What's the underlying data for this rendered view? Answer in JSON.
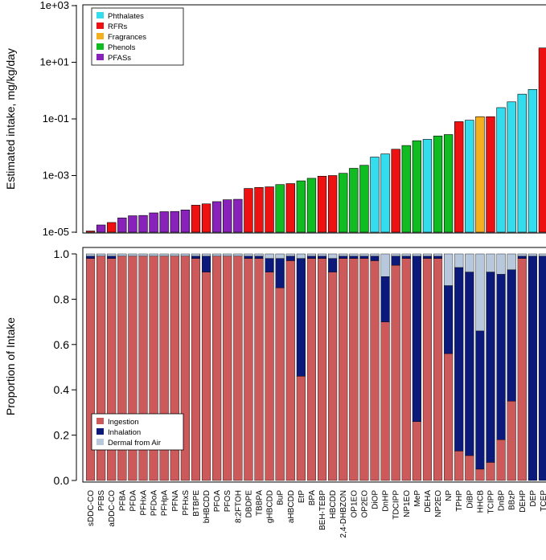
{
  "chart_data": [
    {
      "type": "bar",
      "scale": "log10",
      "ylabel": "Estimated intake, mg/kg/day",
      "ylim": [
        1e-05,
        1000
      ],
      "y_ticks": [
        "1e-05",
        "1e-03",
        "1e-01",
        "1e+01",
        "1e+03"
      ],
      "legend_position": "top-left",
      "legend": [
        {
          "name": "Phthalates",
          "color": "#33DDEE"
        },
        {
          "name": "RFRs",
          "color": "#EE1111"
        },
        {
          "name": "Fragrances",
          "color": "#F5B020"
        },
        {
          "name": "Phenols",
          "color": "#11BB22"
        },
        {
          "name": "PFASs",
          "color": "#8822BB"
        }
      ],
      "categories": [
        "sDDC-CO",
        "PFBS",
        "aDDC-CO",
        "PFBA",
        "PFDA",
        "PFHxA",
        "PFDoA",
        "PFHpA",
        "PFNA",
        "PFHxS",
        "BTBPE",
        "bHBCDD",
        "PFOA",
        "PFOS",
        "8:2FTOH",
        "DBDPE",
        "TBBPA",
        "gHBCDD",
        "BuP",
        "aHBCDD",
        "EtP",
        "BPA",
        "BEH-TEBP",
        "HBCDD",
        "2,4-DHBZON",
        "OP1EO",
        "OP2EO",
        "DiOP",
        "DnHP",
        "TDCIPP",
        "NP1EO",
        "MeP",
        "DEHA",
        "NP2EO",
        "NP",
        "TPHP",
        "DiBP",
        "HHCB",
        "TCIPP",
        "DnBP",
        "BBzP",
        "DEHP",
        "DEP",
        "TCEP"
      ],
      "groups": [
        "RFRs",
        "PFASs",
        "RFRs",
        "PFASs",
        "PFASs",
        "PFASs",
        "PFASs",
        "PFASs",
        "PFASs",
        "PFASs",
        "RFRs",
        "RFRs",
        "PFASs",
        "PFASs",
        "PFASs",
        "RFRs",
        "RFRs",
        "RFRs",
        "Phenols",
        "RFRs",
        "Phenols",
        "Phenols",
        "RFRs",
        "RFRs",
        "Phenols",
        "Phenols",
        "Phenols",
        "Phthalates",
        "Phthalates",
        "RFRs",
        "Phenols",
        "Phenols",
        "Phthalates",
        "Phenols",
        "Phenols",
        "RFRs",
        "Phthalates",
        "Fragrances",
        "RFRs",
        "Phthalates",
        "Phthalates",
        "Phthalates",
        "Phthalates",
        "RFRs"
      ],
      "values": [
        1.1e-05,
        1.8e-05,
        2.2e-05,
        3.2e-05,
        3.8e-05,
        3.9e-05,
        4.8e-05,
        5.3e-05,
        5.4e-05,
        6.1e-05,
        9e-05,
        0.0001,
        0.00012,
        0.00014,
        0.000145,
        0.00035,
        0.00038,
        0.0004,
        0.00048,
        0.00052,
        0.00065,
        0.0008,
        0.00095,
        0.001,
        0.0012,
        0.0018,
        0.0023,
        0.0045,
        0.0058,
        0.0085,
        0.0115,
        0.017,
        0.019,
        0.025,
        0.028,
        0.08,
        0.09,
        0.12,
        0.12,
        0.25,
        0.4,
        0.75,
        1.1,
        32
      ]
    },
    {
      "type": "bar",
      "stacked": true,
      "ylabel": "Proportion of Intake",
      "ylim": [
        0,
        1
      ],
      "y_ticks": [
        "0.0",
        "0.2",
        "0.4",
        "0.6",
        "0.8",
        "1.0"
      ],
      "legend_position": "bottom-left",
      "categories_ref": "same as chart above",
      "series": [
        {
          "name": "Ingestion",
          "color": "#CC5A5A",
          "values": [
            0.98,
            0.99,
            0.98,
            0.99,
            0.99,
            0.99,
            0.99,
            0.99,
            0.99,
            0.99,
            0.98,
            0.92,
            0.99,
            0.99,
            0.99,
            0.98,
            0.98,
            0.92,
            0.85,
            0.97,
            0.46,
            0.98,
            0.98,
            0.92,
            0.98,
            0.98,
            0.98,
            0.97,
            0.7,
            0.95,
            0.98,
            0.26,
            0.98,
            0.98,
            0.56,
            0.13,
            0.11,
            0.05,
            0.08,
            0.18,
            0.35,
            0.98,
            0.0,
            0.0
          ]
        },
        {
          "name": "Inhalation",
          "color": "#0B1A7A",
          "values": [
            0.01,
            0.0,
            0.01,
            0.0,
            0.0,
            0.0,
            0.0,
            0.0,
            0.0,
            0.0,
            0.01,
            0.07,
            0.0,
            0.0,
            0.0,
            0.01,
            0.01,
            0.06,
            0.13,
            0.02,
            0.52,
            0.01,
            0.01,
            0.06,
            0.01,
            0.01,
            0.01,
            0.02,
            0.2,
            0.04,
            0.01,
            0.73,
            0.01,
            0.01,
            0.3,
            0.81,
            0.81,
            0.61,
            0.84,
            0.73,
            0.58,
            0.01,
            0.99,
            0.99
          ]
        },
        {
          "name": "Dermal from Air",
          "color": "#B8C8DC",
          "values": [
            0.01,
            0.01,
            0.01,
            0.01,
            0.01,
            0.01,
            0.01,
            0.01,
            0.01,
            0.01,
            0.01,
            0.01,
            0.01,
            0.01,
            0.01,
            0.01,
            0.01,
            0.02,
            0.02,
            0.01,
            0.02,
            0.01,
            0.01,
            0.02,
            0.01,
            0.01,
            0.01,
            0.01,
            0.1,
            0.01,
            0.01,
            0.01,
            0.01,
            0.01,
            0.14,
            0.06,
            0.08,
            0.34,
            0.08,
            0.09,
            0.07,
            0.01,
            0.01,
            0.01
          ]
        }
      ]
    }
  ]
}
